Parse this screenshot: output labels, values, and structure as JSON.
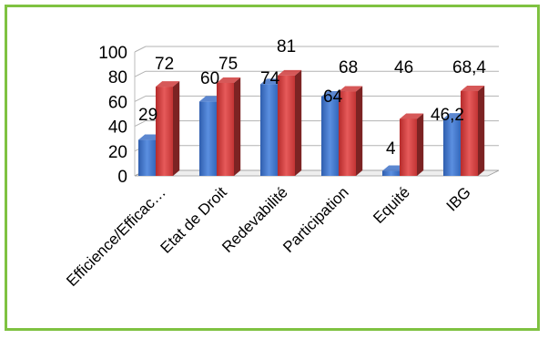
{
  "chart_data": {
    "type": "bar",
    "categories": [
      "Efficience/Efficac…",
      "Etat de Droit",
      "Redevabilité",
      "Participation",
      "Equité",
      "IBG"
    ],
    "series": [
      {
        "values": [
          29,
          60,
          74,
          64,
          4,
          46.2
        ],
        "labels": [
          "29",
          "60",
          "74",
          "64",
          "4",
          "46,2"
        ],
        "color": "#3f72c8"
      },
      {
        "values": [
          72,
          75,
          81,
          68,
          46,
          68.4
        ],
        "labels": [
          "72",
          "75",
          "81",
          "68",
          "46",
          "68,4"
        ],
        "color": "#cf3b3b"
      }
    ],
    "yticks": [
      "0",
      "20",
      "40",
      "60",
      "80",
      "100"
    ],
    "ylim": [
      0,
      100
    ],
    "grid": true,
    "legend": "none",
    "title": "",
    "xlabel": "",
    "ylabel": ""
  },
  "colors": {
    "border": "#7fc241",
    "grid": "#b3b3b3"
  }
}
